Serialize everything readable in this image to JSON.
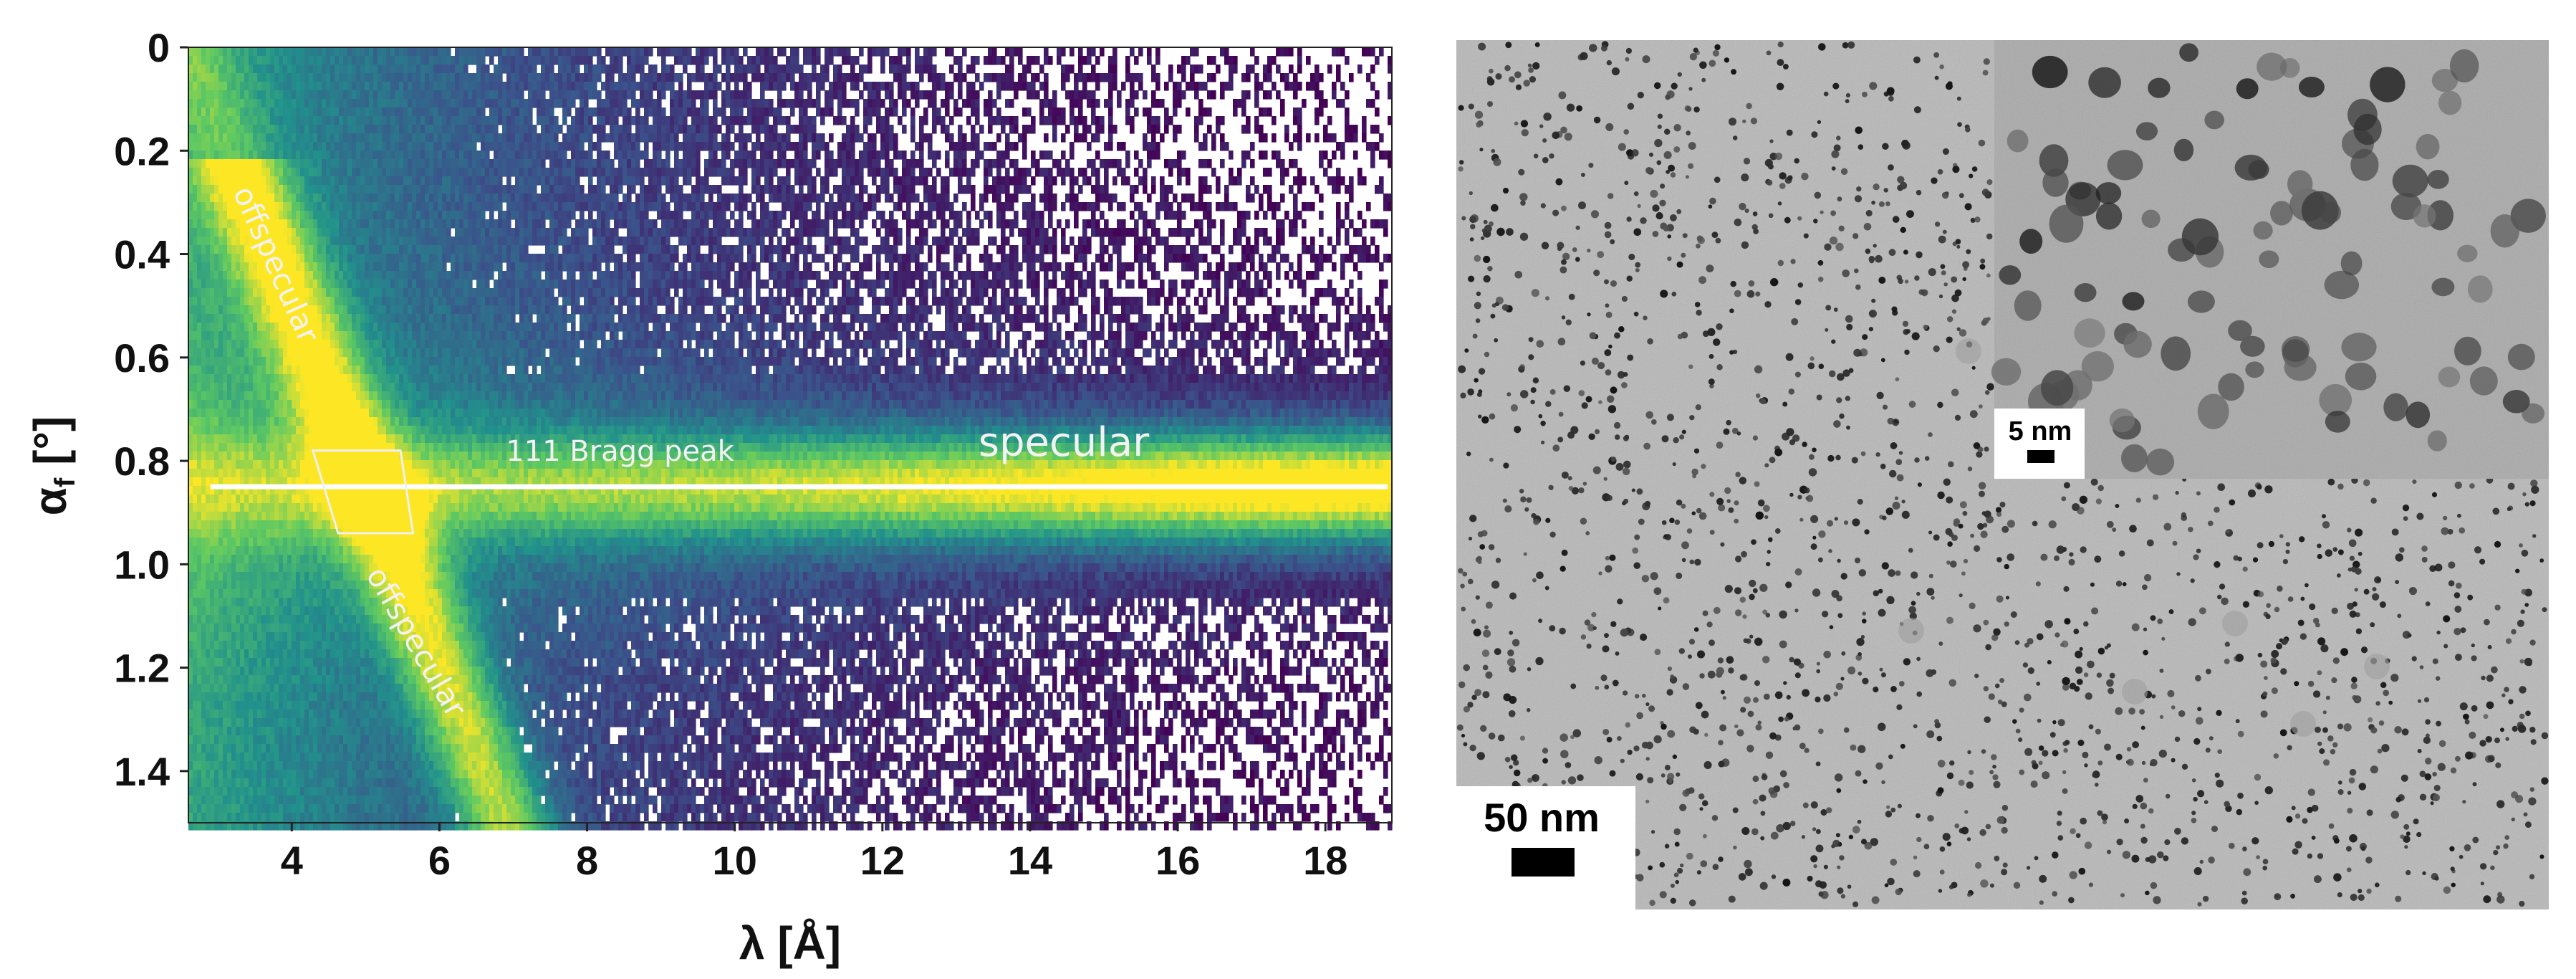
{
  "chart_data": [
    {
      "type": "heatmap",
      "xlabel": "λ [Å]",
      "ylabel_main": "α",
      "ylabel_sub": "f",
      "ylabel_unit": " [°]",
      "xlim": [
        2.6,
        18.9
      ],
      "ylim": [
        1.5,
        0
      ],
      "x_ticks": [
        4,
        6,
        8,
        10,
        12,
        14,
        16,
        18
      ],
      "y_ticks": [
        0,
        0.2,
        0.4,
        0.6,
        0.8,
        1.0,
        1.2,
        1.4
      ],
      "y_tick_labels": [
        "0",
        "0.2",
        "0.4",
        "0.6",
        "0.8",
        "1.0",
        "1.2",
        "1.4"
      ],
      "colormap": [
        "#440154",
        "#3b528b",
        "#21918c",
        "#5ec962",
        "#fde725"
      ],
      "specular_line": {
        "alpha_f": 0.85,
        "color": "#ffffff"
      },
      "offspecular_band": {
        "lambda_at_alpha0": 2.6,
        "lambda_at_alpha1_5": 6.9
      },
      "bragg_box": {
        "lambda": [
          4.5,
          5.6
        ],
        "alpha_f": [
          0.78,
          0.94
        ]
      },
      "annotations": [
        {
          "text": "offspecular",
          "x": 3.2,
          "y": 0.28,
          "angle": 66
        },
        {
          "text": "offspecular",
          "x": 5.0,
          "y": 1.02,
          "angle": 60
        },
        {
          "text": "111 Bragg peak",
          "x": 6.9,
          "y": 0.8
        },
        {
          "text": "specular",
          "x": 13.3,
          "y": 0.79
        }
      ]
    }
  ],
  "micrograph": {
    "scale_bar_label": "50 nm",
    "inset_scale_bar_label": "5 nm"
  }
}
